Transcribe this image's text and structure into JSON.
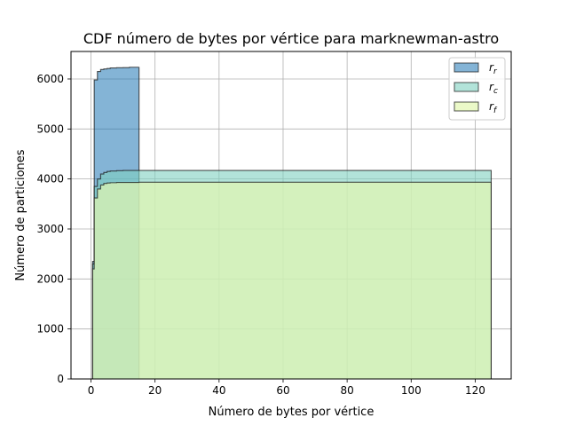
{
  "chart_data": {
    "type": "area",
    "title": "CDF número de bytes por vértice para marknewman-astro",
    "xlabel": "Número de bytes por vértice",
    "ylabel": "Número de particiones",
    "xlim": [
      -6.25,
      131.25
    ],
    "ylim": [
      0,
      6550
    ],
    "xticks": [
      0,
      20,
      40,
      60,
      80,
      100,
      120
    ],
    "yticks": [
      0,
      1000,
      2000,
      3000,
      4000,
      5000,
      6000
    ],
    "grid": true,
    "legend_position": "top-right",
    "series": [
      {
        "name": "r_r",
        "legend_main": "r",
        "legend_sub": "r",
        "color": "#1f77b4",
        "alpha": 0.55,
        "x": [
          0,
          0.5,
          1,
          2,
          3,
          4,
          5,
          6,
          8,
          10,
          12,
          15
        ],
        "y": [
          0,
          2350,
          5980,
          6150,
          6190,
          6200,
          6210,
          6220,
          6225,
          6228,
          6235,
          6240
        ]
      },
      {
        "name": "r_c",
        "legend_main": "r",
        "legend_sub": "c",
        "color": "#7fd1c0",
        "alpha": 0.6,
        "x": [
          0,
          0.5,
          1,
          2,
          3,
          4,
          5,
          6,
          8,
          10,
          15,
          125
        ],
        "y": [
          0,
          2300,
          3850,
          4000,
          4100,
          4130,
          4150,
          4160,
          4165,
          4170,
          4170,
          4180
        ]
      },
      {
        "name": "r_f",
        "legend_main": "r",
        "legend_sub": "f",
        "color": "#e3f7b0",
        "alpha": 0.7,
        "x": [
          0,
          0.5,
          1,
          2,
          3,
          4,
          5,
          6,
          8,
          10,
          15,
          125
        ],
        "y": [
          0,
          2200,
          3620,
          3800,
          3880,
          3910,
          3920,
          3925,
          3930,
          3930,
          3935,
          3940
        ]
      }
    ]
  }
}
